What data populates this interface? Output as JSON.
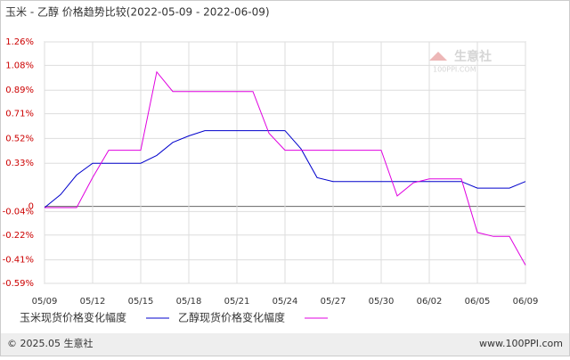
{
  "chart_data": {
    "type": "line",
    "title": "玉米 - 乙醇 价格趋势比较(2022-05-09 - 2022-06-09)",
    "categories": [
      "05/09",
      null,
      null,
      "05/12",
      null,
      null,
      "05/15",
      null,
      null,
      "05/18",
      null,
      null,
      "05/21",
      null,
      null,
      "05/24",
      null,
      null,
      "05/27",
      null,
      null,
      "05/30",
      null,
      null,
      "06/02",
      null,
      null,
      "06/05",
      null,
      null,
      "06/09"
    ],
    "series": [
      {
        "name": "玉米现货价格变化幅度",
        "color": "#0000cc",
        "values": [
          -0.01,
          0.09,
          0.24,
          0.33,
          0.33,
          0.33,
          0.33,
          0.39,
          0.49,
          0.54,
          0.58,
          0.58,
          0.58,
          0.58,
          0.58,
          0.58,
          0.44,
          0.22,
          0.19,
          0.19,
          0.19,
          0.19,
          0.19,
          0.19,
          0.19,
          0.19,
          0.19,
          0.14,
          0.14,
          0.14,
          0.19
        ]
      },
      {
        "name": "乙醇现货价格变化幅度",
        "color": "#e000e0",
        "values": [
          -0.01,
          -0.01,
          -0.01,
          0.22,
          0.43,
          0.43,
          0.43,
          1.03,
          0.88,
          0.88,
          0.88,
          0.88,
          0.88,
          0.88,
          0.56,
          0.43,
          0.43,
          0.43,
          0.43,
          0.43,
          0.43,
          0.43,
          0.08,
          0.18,
          0.21,
          0.21,
          0.21,
          -0.2,
          -0.23,
          -0.23,
          -0.45
        ]
      }
    ],
    "ylim": [
      -0.59,
      1.26
    ],
    "yticks": [
      {
        "value": 1.26,
        "label": "1.26%"
      },
      {
        "value": 1.08,
        "label": "1.08%"
      },
      {
        "value": 0.89,
        "label": "0.89%"
      },
      {
        "value": 0.71,
        "label": "0.71%"
      },
      {
        "value": 0.52,
        "label": "0.52%"
      },
      {
        "value": 0.33,
        "label": "0.33%"
      },
      0,
      {
        "value": -0.04,
        "label": "-0.04%"
      },
      {
        "value": -0.22,
        "label": "-0.22%"
      },
      {
        "value": -0.41,
        "label": "-0.41%"
      },
      {
        "value": -0.59,
        "label": "-0.59%"
      }
    ],
    "grid": true,
    "watermark": {
      "brand": "生意社",
      "site": "100PPI.COM"
    },
    "footer": {
      "left": "© 2025.05 生意社",
      "right": "www.100PPI.com"
    }
  }
}
